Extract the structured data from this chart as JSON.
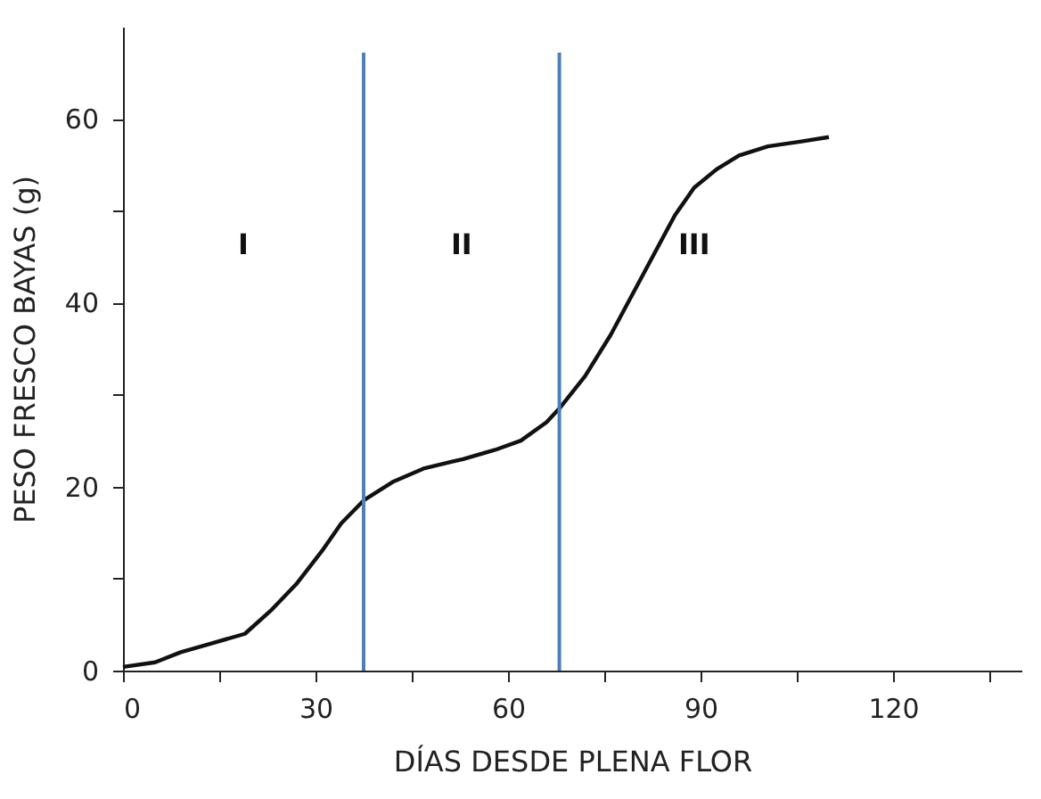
{
  "chart_data": {
    "type": "line",
    "xlabel": "DÍAS DESDE PLENA FLOR",
    "ylabel": "PESO FRESCO BAYAS (g)",
    "x": [
      0,
      5,
      9,
      14,
      19,
      23,
      27,
      31,
      34,
      37.5,
      42,
      47,
      53,
      58,
      62,
      66,
      68,
      72,
      76,
      81,
      86,
      89,
      92.5,
      96,
      100.5,
      105.5,
      110
    ],
    "series": [
      {
        "color": "#111111",
        "values": [
          0.4,
          0.9,
          2,
          3,
          4,
          6.5,
          9.4,
          13,
          16,
          18.5,
          20.5,
          22,
          23,
          24,
          25,
          27,
          28.5,
          32,
          36.5,
          43,
          49.5,
          52.5,
          54.5,
          56,
          57,
          57.5,
          58
        ]
      }
    ],
    "xlim": [
      0,
      140
    ],
    "ylim": [
      0,
      70
    ],
    "xticks": [
      0,
      {
        "value": 15,
        "label": null
      },
      30,
      {
        "value": 45,
        "label": null
      },
      60,
      {
        "value": 75,
        "label": null
      },
      90,
      {
        "value": 105,
        "label": null
      },
      120,
      {
        "value": 135,
        "label": null
      }
    ],
    "yticks": [
      0,
      {
        "value": 10,
        "label": null
      },
      20,
      {
        "value": 30,
        "label": null
      },
      40,
      {
        "value": 50,
        "label": null
      },
      60
    ],
    "ref_lines": [
      {
        "axis": "x",
        "value": 37.5,
        "color": "#4a7fc1"
      },
      {
        "axis": "x",
        "value": 68,
        "color": "#4a7fc1"
      }
    ],
    "annotations": [
      "I",
      "II",
      "III"
    ],
    "marker": "none",
    "line_style": "solid"
  }
}
